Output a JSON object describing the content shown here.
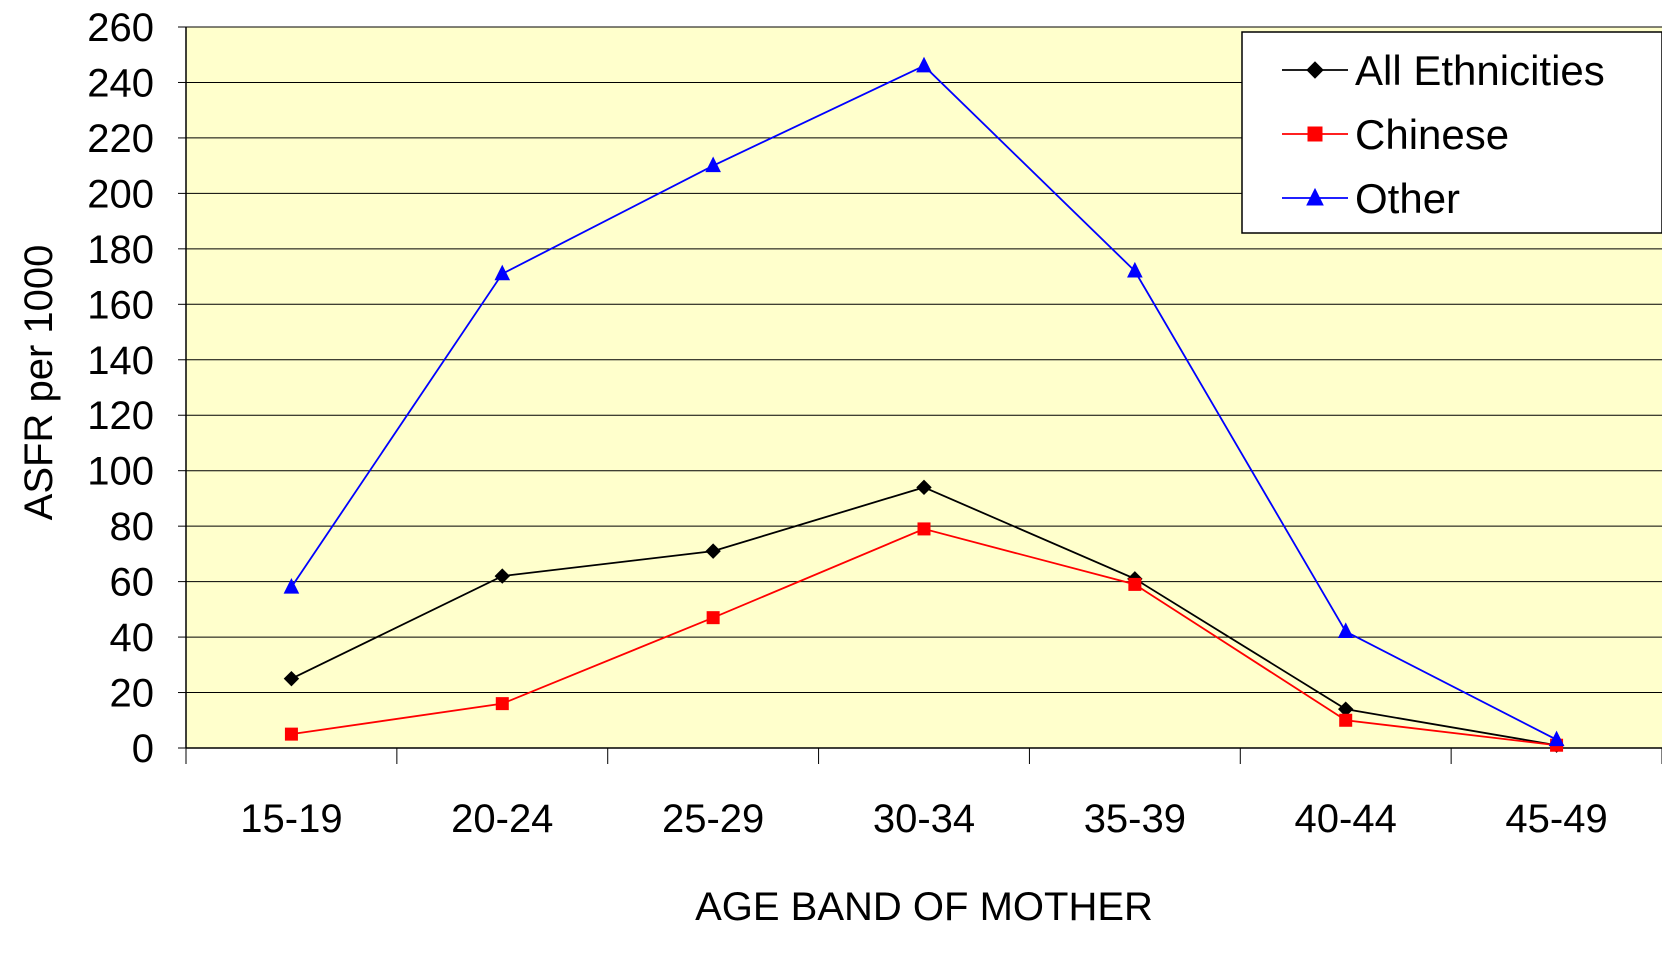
{
  "chart_data": {
    "type": "line",
    "title": "",
    "xlabel": "AGE BAND OF MOTHER",
    "ylabel": "ASFR per 1000",
    "categories": [
      "15-19",
      "20-24",
      "25-29",
      "30-34",
      "35-39",
      "40-44",
      "45-49"
    ],
    "ylim": [
      0,
      260
    ],
    "yticks": [
      0,
      20,
      40,
      60,
      80,
      100,
      120,
      140,
      160,
      180,
      200,
      220,
      240,
      260
    ],
    "grid": "horizontal",
    "legend_position": "top-right",
    "plot_background": "#ffffcc",
    "series": [
      {
        "name": "All Ethnicities",
        "color": "#000000",
        "marker": "diamond",
        "values": [
          25,
          62,
          71,
          94,
          61,
          14,
          1
        ]
      },
      {
        "name": "Chinese",
        "color": "#ff0000",
        "marker": "square",
        "values": [
          5,
          16,
          47,
          79,
          59,
          10,
          1
        ]
      },
      {
        "name": "Other",
        "color": "#0000ff",
        "marker": "triangle",
        "values": [
          58,
          171,
          210,
          246,
          172,
          42,
          3
        ]
      }
    ]
  }
}
